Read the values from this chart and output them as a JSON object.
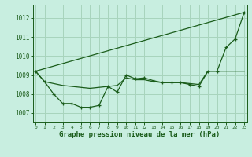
{
  "title": "Graphe pression niveau de la mer (hPa)",
  "bg_color": "#c8eee0",
  "grid_color": "#a8d4bc",
  "line_color": "#1a5c1a",
  "spine_color": "#2d7a2d",
  "xlim": [
    -0.3,
    23.3
  ],
  "ylim": [
    1006.5,
    1012.7
  ],
  "yticks": [
    1007,
    1008,
    1009,
    1010,
    1011,
    1012
  ],
  "xticks": [
    0,
    1,
    2,
    3,
    4,
    5,
    6,
    7,
    8,
    9,
    10,
    11,
    12,
    13,
    14,
    15,
    16,
    17,
    18,
    19,
    20,
    21,
    22,
    23
  ],
  "trend_x": [
    0,
    23
  ],
  "trend_y": [
    1009.2,
    1012.3
  ],
  "line1_x": [
    0,
    1,
    2,
    3,
    4,
    5,
    6,
    7,
    8,
    9,
    10,
    11,
    12,
    13,
    14,
    15,
    16,
    17,
    18,
    19,
    20,
    21,
    22,
    23
  ],
  "line1_y": [
    1009.2,
    1008.65,
    1008.55,
    1008.45,
    1008.4,
    1008.35,
    1008.3,
    1008.35,
    1008.4,
    1008.45,
    1008.85,
    1008.75,
    1008.75,
    1008.65,
    1008.6,
    1008.6,
    1008.6,
    1008.55,
    1008.5,
    1009.2,
    1009.2,
    1009.2,
    1009.2,
    1009.2
  ],
  "line2_x": [
    0,
    1,
    2,
    3,
    4,
    5,
    6,
    7,
    8,
    9,
    10,
    11,
    12,
    13,
    14,
    15,
    16,
    17,
    18,
    19,
    20,
    21,
    22,
    23
  ],
  "line2_y": [
    1009.2,
    1008.65,
    1008.0,
    1007.5,
    1007.5,
    1007.3,
    1007.3,
    1007.4,
    1008.4,
    1008.1,
    1009.0,
    1008.8,
    1008.85,
    1008.7,
    1008.6,
    1008.6,
    1008.6,
    1008.5,
    1008.4,
    1009.2,
    1009.2,
    1010.45,
    1010.9,
    1012.3
  ]
}
